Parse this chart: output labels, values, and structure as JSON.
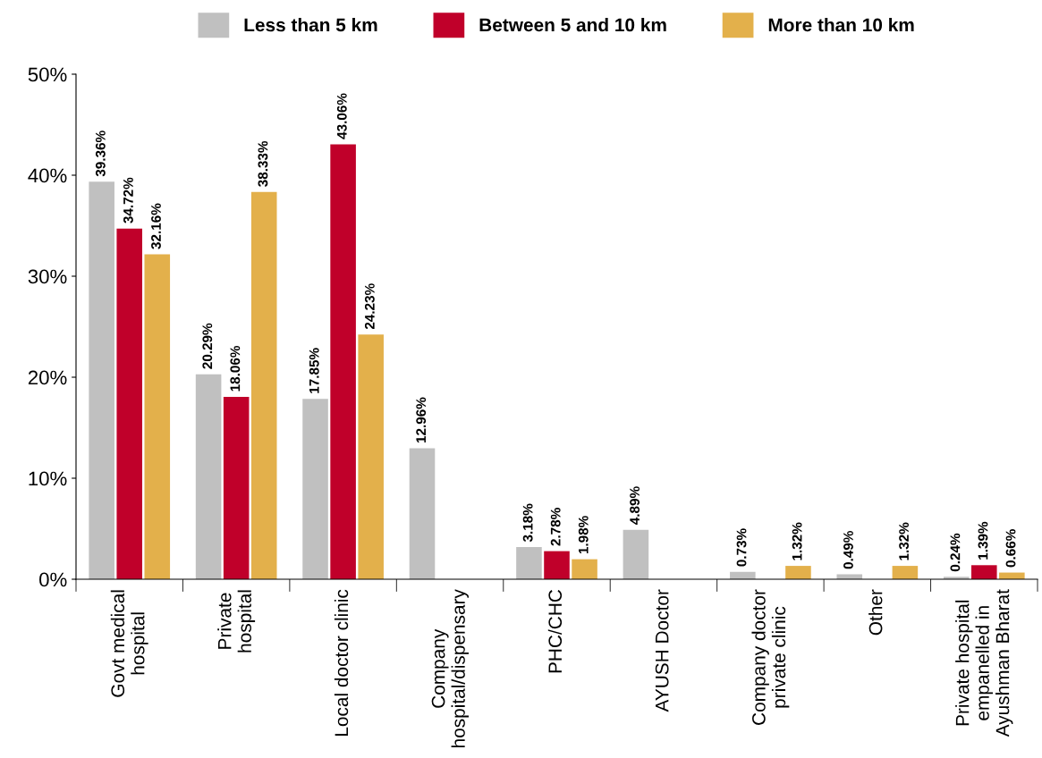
{
  "chart_data": {
    "type": "bar",
    "categories": [
      "Govt medical\nhospital",
      "Private\nhospital",
      "Local doctor clinic",
      "Company\nhospital/dispensary",
      "PHC/CHC",
      "AYUSH Doctor",
      "Company doctor\nprivate clinic",
      "Other",
      "Private hospital\nempanelled in\nAyushman Bharat"
    ],
    "series": [
      {
        "name": "Less than 5 km",
        "color": "#c0c0c0",
        "values": [
          39.36,
          20.29,
          17.85,
          12.96,
          3.18,
          4.89,
          0.73,
          0.49,
          0.24
        ],
        "value_labels": [
          "39.36%",
          "20.29%",
          "17.85%",
          "12.96%",
          "3.18%",
          "4.89%",
          "0.73%",
          "0.49%",
          "0.24%"
        ]
      },
      {
        "name": "Between 5 and 10 km",
        "color": "#c0002a",
        "values": [
          34.72,
          18.06,
          43.06,
          0,
          2.78,
          0,
          0,
          0,
          1.39
        ],
        "value_labels": [
          "34.72%",
          "18.06%",
          "43.06%",
          null,
          "2.78%",
          null,
          null,
          null,
          "1.39%"
        ]
      },
      {
        "name": "More than 10 km",
        "color": "#e3b04b",
        "values": [
          32.16,
          38.33,
          24.23,
          0,
          1.98,
          0,
          1.32,
          1.32,
          0.66
        ],
        "value_labels": [
          "32.16%",
          "38.33%",
          "24.23%",
          null,
          "1.98%",
          null,
          "1.32%",
          "1.32%",
          "0.66%"
        ]
      }
    ],
    "ylim": [
      0,
      50
    ],
    "yticks": [
      {
        "value": 0,
        "label": "0%"
      },
      {
        "value": 10,
        "label": "10%"
      },
      {
        "value": 20,
        "label": "20%"
      },
      {
        "value": 30,
        "label": "30%"
      },
      {
        "value": 40,
        "label": "40%"
      },
      {
        "value": 50,
        "label": "50%"
      }
    ],
    "grid": false,
    "legend": "top"
  }
}
